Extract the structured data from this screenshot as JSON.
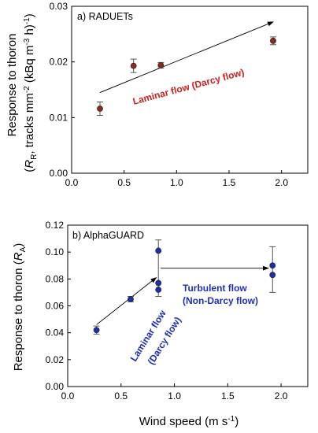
{
  "chart_data": [
    {
      "type": "scatter",
      "panel_title": "a) RADUETs",
      "ylabel_main": "Response to thoron",
      "ylabel_sub": "(R_R, tracks mm^-2 (kBq m^-3 h)^-1)",
      "xlim": [
        0.0,
        2.25
      ],
      "ylim": [
        0.0,
        0.03
      ],
      "xticks": [
        "0.0",
        "0.5",
        "1.0",
        "1.5",
        "2.0"
      ],
      "yticks": [
        "0.00",
        "0.01",
        "0.02",
        "0.03"
      ],
      "marker_color": "#8b2a1a",
      "points": [
        {
          "x": 0.27,
          "y": 0.0116,
          "err": 0.0012
        },
        {
          "x": 0.59,
          "y": 0.0193,
          "err": 0.0012
        },
        {
          "x": 0.85,
          "y": 0.0194,
          "err": 0.0005
        },
        {
          "x": 1.92,
          "y": 0.0238,
          "err": 0.0007
        }
      ],
      "arrow": {
        "from": [
          0.27,
          0.0145
        ],
        "to": [
          1.92,
          0.0272
        ]
      },
      "annotations": [
        "Laminar flow (Darcy flow)"
      ]
    },
    {
      "type": "scatter",
      "panel_title": "b) AlphaGUARD",
      "ylabel": "Response to thoron (R_A)",
      "xlabel": "Wind speed (m s^-1)",
      "xlim": [
        0.0,
        2.25
      ],
      "ylim": [
        0.0,
        0.12
      ],
      "xticks": [
        "0.0",
        "0.5",
        "1.0",
        "1.5",
        "2.0"
      ],
      "yticks": [
        "0.00",
        "0.02",
        "0.04",
        "0.06",
        "0.08",
        "0.10",
        "0.12"
      ],
      "marker_color": "#1a2fa8",
      "points": [
        {
          "x": 0.27,
          "y": 0.042
        },
        {
          "x": 0.59,
          "y": 0.065
        },
        {
          "x": 0.85,
          "y": 0.072
        },
        {
          "x": 0.85,
          "y": 0.077
        },
        {
          "x": 0.85,
          "y": 0.101
        },
        {
          "x": 1.92,
          "y": 0.083
        },
        {
          "x": 1.92,
          "y": 0.09
        }
      ],
      "errorbars": [
        {
          "x": 0.27,
          "y": 0.042,
          "err": 0.003
        },
        {
          "x": 0.59,
          "y": 0.065,
          "err": 0.002
        },
        {
          "x": 0.85,
          "y": 0.088,
          "err": 0.021
        },
        {
          "x": 1.92,
          "y": 0.087,
          "err": 0.017
        }
      ],
      "arrows": [
        {
          "from": [
            0.27,
            0.046
          ],
          "to": [
            0.83,
            0.081
          ]
        },
        {
          "from": [
            0.87,
            0.088
          ],
          "to": [
            1.88,
            0.088
          ]
        }
      ],
      "annotations": [
        "Turbulent flow",
        "(Non-Darcy flow)",
        "Laminar flow",
        "(Darcy flow)"
      ]
    }
  ]
}
